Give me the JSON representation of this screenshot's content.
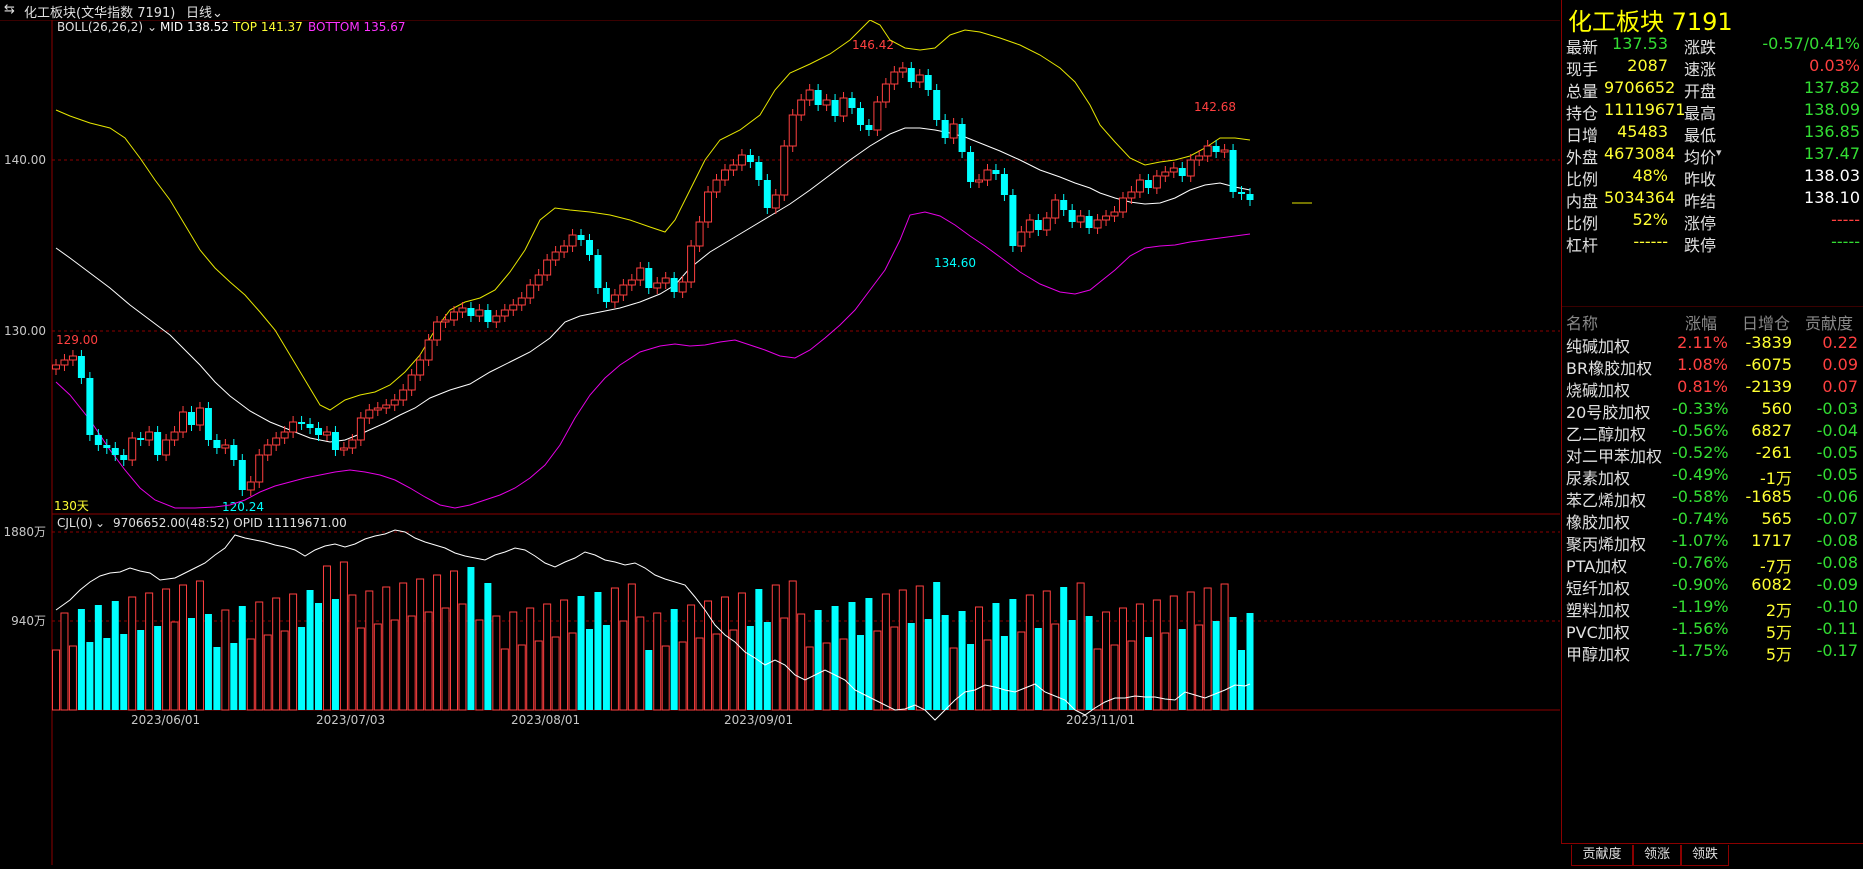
{
  "topbar": {
    "icon": "link-icon",
    "title": "化工板块(文华指数 7191)",
    "period": "日线"
  },
  "boll": {
    "label": "BOLL(26,26,2)",
    "mid": "MID 138.52",
    "top": "TOP 141.37",
    "bottom": "BOTTOM 135.67"
  },
  "price_axis": [
    "140.00",
    "130.00"
  ],
  "annotations": {
    "high1": "146.42",
    "high2": "142.68",
    "low1": "134.60",
    "start": "129.00",
    "low2": "120.24",
    "days": "130天"
  },
  "volume": {
    "label": "CJL(0)",
    "values": "9706652.00(48:52)  OPID 11119671.00",
    "axis": [
      "1880万",
      "940万"
    ]
  },
  "dates": [
    "2023/06/01",
    "2023/07/03",
    "2023/08/01",
    "2023/09/01",
    "2023/11/01"
  ],
  "right_panel": {
    "title": "化工板块  7191",
    "quote_left": [
      {
        "label": "最新",
        "value": "137.53",
        "color": "#33dd33"
      },
      {
        "label": "现手",
        "value": "2087",
        "color": "#ffff33"
      },
      {
        "label": "总量",
        "value": "9706652",
        "color": "#ffff33"
      },
      {
        "label": "持仓",
        "value": "11119671",
        "color": "#ffff33"
      },
      {
        "label": "日增",
        "value": "45483",
        "color": "#ffff33"
      },
      {
        "label": "外盘",
        "value": "4673084",
        "color": "#ffff33"
      },
      {
        "label": "比例",
        "value": "48%",
        "color": "#ffff33"
      },
      {
        "label": "内盘",
        "value": "5034364",
        "color": "#ffff33"
      },
      {
        "label": "比例",
        "value": "52%",
        "color": "#ffff33"
      },
      {
        "label": "杠杆",
        "value": "------",
        "color": "#ffff33"
      }
    ],
    "quote_right": [
      {
        "label": "涨跌",
        "value": "-0.57/0.41%",
        "color": "#33dd33"
      },
      {
        "label": "速涨",
        "value": "0.03%",
        "color": "#ff4040"
      },
      {
        "label": "开盘",
        "value": "137.82",
        "color": "#33dd33"
      },
      {
        "label": "最高",
        "value": "138.09",
        "color": "#33dd33"
      },
      {
        "label": "最低",
        "value": "136.85",
        "color": "#33dd33"
      },
      {
        "label": "均价",
        "value": "137.47",
        "color": "#33dd33"
      },
      {
        "label": "昨收",
        "value": "138.03",
        "color": "#ffffff"
      },
      {
        "label": "昨结",
        "value": "138.10",
        "color": "#ffffff"
      },
      {
        "label": "涨停",
        "value": "-----",
        "color": "#ff4040"
      },
      {
        "label": "跌停",
        "value": "-----",
        "color": "#33dd33"
      }
    ],
    "headers": [
      "名称",
      "涨幅",
      "日增仓",
      "贡献度"
    ],
    "components": [
      {
        "name": "纯碱加权",
        "chg": "2.11%",
        "oi": "-3839",
        "contrib": "0.22",
        "up": true
      },
      {
        "name": "BR橡胶加权",
        "chg": "1.08%",
        "oi": "-6075",
        "contrib": "0.09",
        "up": true
      },
      {
        "name": "烧碱加权",
        "chg": "0.81%",
        "oi": "-2139",
        "contrib": "0.07",
        "up": true
      },
      {
        "name": "20号胶加权",
        "chg": "-0.33%",
        "oi": "560",
        "contrib": "-0.03",
        "up": false
      },
      {
        "name": "乙二醇加权",
        "chg": "-0.56%",
        "oi": "6827",
        "contrib": "-0.04",
        "up": false
      },
      {
        "name": "对二甲苯加权",
        "chg": "-0.52%",
        "oi": "-261",
        "contrib": "-0.05",
        "up": false
      },
      {
        "name": "尿素加权",
        "chg": "-0.49%",
        "oi": "-1万",
        "contrib": "-0.05",
        "up": false
      },
      {
        "name": "苯乙烯加权",
        "chg": "-0.58%",
        "oi": "-1685",
        "contrib": "-0.06",
        "up": false
      },
      {
        "name": "橡胶加权",
        "chg": "-0.74%",
        "oi": "565",
        "contrib": "-0.07",
        "up": false
      },
      {
        "name": "聚丙烯加权",
        "chg": "-1.07%",
        "oi": "1717",
        "contrib": "-0.08",
        "up": false
      },
      {
        "name": "PTA加权",
        "chg": "-0.76%",
        "oi": "-7万",
        "contrib": "-0.08",
        "up": false
      },
      {
        "name": "短纤加权",
        "chg": "-0.90%",
        "oi": "6082",
        "contrib": "-0.09",
        "up": false
      },
      {
        "name": "塑料加权",
        "chg": "-1.19%",
        "oi": "2万",
        "contrib": "-0.10",
        "up": false
      },
      {
        "name": "PVC加权",
        "chg": "-1.56%",
        "oi": "5万",
        "contrib": "-0.11",
        "up": false
      },
      {
        "name": "甲醇加权",
        "chg": "-1.75%",
        "oi": "5万",
        "contrib": "-0.17",
        "up": false
      }
    ],
    "tabs": [
      "贡献度",
      "领涨",
      "领跌"
    ]
  },
  "colors": {
    "up": "#ff4040",
    "down": "#00ffff",
    "top_band": "#e6e600",
    "mid_band": "#ffffff",
    "bottom_band": "#e600e6",
    "grid": "#8b0000"
  }
}
